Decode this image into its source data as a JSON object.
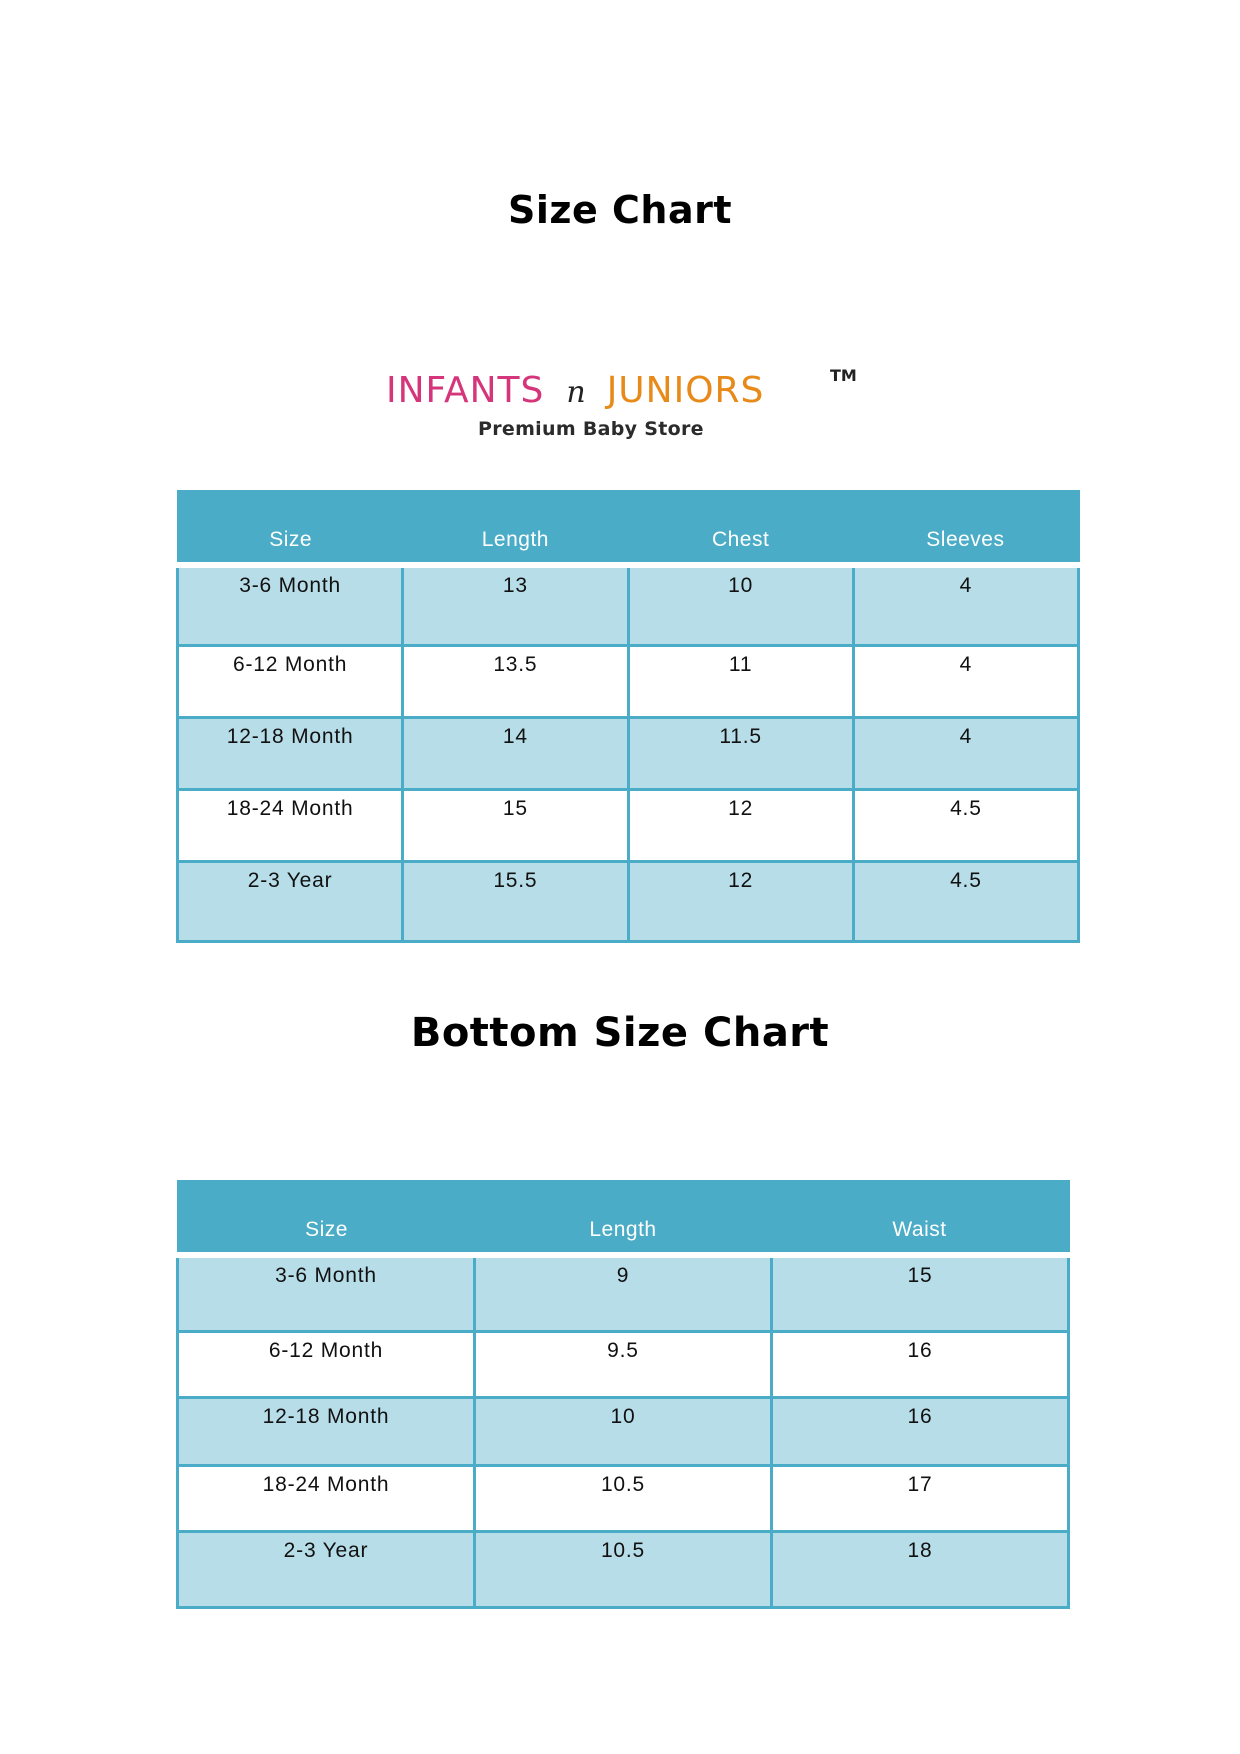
{
  "titles": {
    "top": "Size Chart",
    "bottom": "Bottom Size Chart"
  },
  "logo": {
    "brand_left": "INFANTS",
    "brand_connector": "n",
    "brand_right": "JUNIORS",
    "trademark": "TM",
    "tagline": "Premium Baby Store",
    "colors": {
      "left": "#d5357a",
      "right": "#e88a1a"
    }
  },
  "colors": {
    "header": "#4aacc6",
    "shaded_row": "#b7dde8",
    "border": "#4aacc6"
  },
  "top_table": {
    "headers": [
      "Size",
      "Length",
      "Chest",
      "Sleeves"
    ],
    "rows": [
      [
        "3-6 Month",
        "13",
        "10",
        "4"
      ],
      [
        "6-12 Month",
        "13.5",
        "11",
        "4"
      ],
      [
        "12-18 Month",
        "14",
        "11.5",
        "4"
      ],
      [
        "18-24 Month",
        "15",
        "12",
        "4.5"
      ],
      [
        "2-3 Year",
        "15.5",
        "12",
        "4.5"
      ]
    ]
  },
  "bottom_table": {
    "headers": [
      "Size",
      "Length",
      "Waist"
    ],
    "rows": [
      [
        "3-6 Month",
        "9",
        "15"
      ],
      [
        "6-12 Month",
        "9.5",
        "16"
      ],
      [
        "12-18 Month",
        "10",
        "16"
      ],
      [
        "18-24 Month",
        "10.5",
        "17"
      ],
      [
        "2-3 Year",
        "10.5",
        "18"
      ]
    ]
  }
}
